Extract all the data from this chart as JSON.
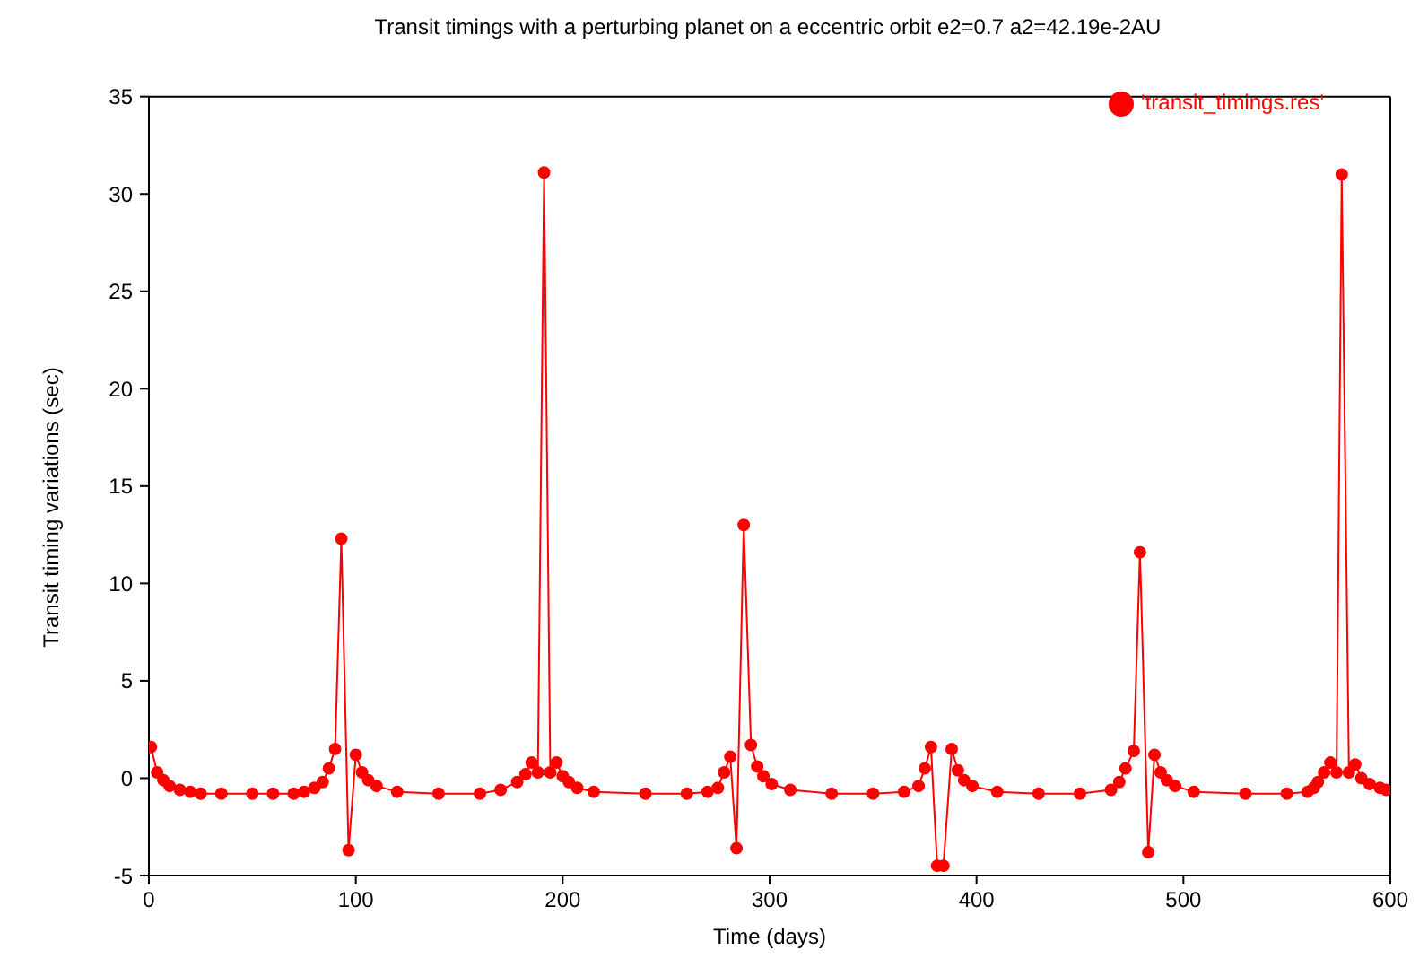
{
  "chart_data": {
    "type": "line",
    "title": "Transit timings with a perturbing planet on a eccentric orbit e2=0.7 a2=42.19e-2AU",
    "xlabel": "Time (days)",
    "ylabel": "Transit timing variations (sec)",
    "x": [
      1,
      4,
      7,
      10,
      15,
      20,
      25,
      35,
      50,
      60,
      70,
      75,
      80,
      84,
      87,
      90,
      93,
      96.5,
      100,
      103,
      106,
      110,
      120,
      140,
      160,
      170,
      178,
      182,
      185,
      188,
      191,
      194,
      197,
      200,
      203,
      207,
      215,
      240,
      260,
      270,
      275,
      278,
      281,
      284,
      287.5,
      291,
      294,
      297,
      301,
      310,
      330,
      350,
      365,
      372,
      375,
      378,
      381,
      384,
      388,
      391,
      394,
      398,
      410,
      430,
      450,
      465,
      469,
      472,
      476,
      479,
      483,
      486,
      489,
      492,
      496,
      505,
      530,
      550,
      560,
      563,
      565,
      568,
      571,
      574,
      576.5,
      580,
      583,
      586,
      590,
      595,
      598
    ],
    "series": [
      {
        "name": "'transit_timings.res'",
        "color": "#ff0000",
        "values": [
          1.6,
          0.3,
          -0.1,
          -0.4,
          -0.6,
          -0.7,
          -0.8,
          -0.8,
          -0.8,
          -0.8,
          -0.8,
          -0.7,
          -0.5,
          -0.2,
          0.5,
          1.5,
          12.3,
          -3.7,
          1.2,
          0.3,
          -0.1,
          -0.4,
          -0.7,
          -0.8,
          -0.8,
          -0.6,
          -0.2,
          0.2,
          0.8,
          0.3,
          31.1,
          0.3,
          0.8,
          0.1,
          -0.2,
          -0.5,
          -0.7,
          -0.8,
          -0.8,
          -0.7,
          -0.5,
          0.3,
          1.1,
          -3.6,
          13,
          1.7,
          0.6,
          0.1,
          -0.3,
          -0.6,
          -0.8,
          -0.8,
          -0.7,
          -0.4,
          0.5,
          1.6,
          -4.5,
          -4.5,
          1.5,
          0.4,
          -0.1,
          -0.4,
          -0.7,
          -0.8,
          -0.8,
          -0.6,
          -0.2,
          0.5,
          1.4,
          11.6,
          -3.8,
          1.2,
          0.3,
          -0.1,
          -0.4,
          -0.7,
          -0.8,
          -0.8,
          -0.7,
          -0.5,
          -0.2,
          0.3,
          0.8,
          0.3,
          31,
          0.3,
          0.7,
          0,
          -0.3,
          -0.5,
          -0.6
        ]
      }
    ],
    "xlim": [
      0,
      600
    ],
    "xticks": [
      0,
      100,
      200,
      300,
      400,
      500,
      600
    ],
    "ylim": [
      -5,
      35
    ],
    "yticks": [
      -5,
      0,
      5,
      10,
      15,
      20,
      25,
      30,
      35
    ],
    "marker": "circle",
    "line_style": "solid",
    "legend": "top right",
    "grid": false
  }
}
